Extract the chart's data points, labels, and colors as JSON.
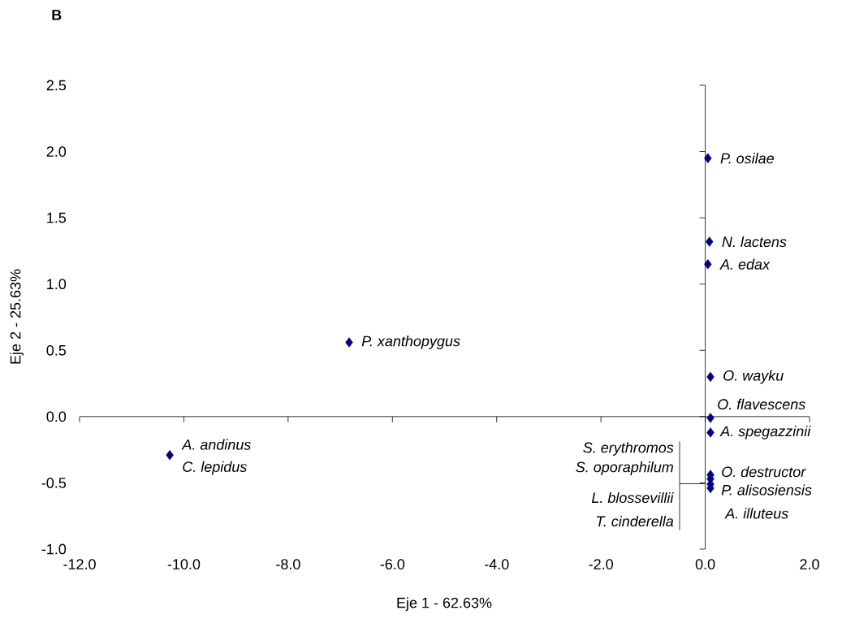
{
  "chart_data": {
    "type": "scatter",
    "title": "B",
    "xlabel": "Eje 1 - 62.63%",
    "ylabel": "Eje 2 - 25.63%",
    "x": [
      0.05,
      0.08,
      0.05,
      -6.83,
      0.1,
      0.1,
      0.1,
      -10.27,
      0.1,
      0.1,
      0.1,
      0.1
    ],
    "values": [
      1.95,
      1.32,
      1.15,
      0.56,
      0.3,
      -0.01,
      -0.12,
      -0.29,
      -0.44,
      -0.47,
      -0.51,
      -0.54
    ],
    "color": "#000080",
    "marker": "diamond",
    "xlim": [
      -12,
      2
    ],
    "ylim": [
      -1,
      2.5
    ],
    "xticks": [
      {
        "value": -12,
        "label": "-12.0"
      },
      {
        "value": -10,
        "label": "-10.0"
      },
      {
        "value": -8,
        "label": "-8.0"
      },
      {
        "value": -6,
        "label": "-6.0"
      },
      {
        "value": -4,
        "label": "-4.0"
      },
      {
        "value": -2,
        "label": "-2.0"
      },
      {
        "value": 0,
        "label": "0.0"
      },
      {
        "value": 2,
        "label": "2.0"
      }
    ],
    "yticks": [
      {
        "value": -1,
        "label": "-1.0"
      },
      {
        "value": -0.5,
        "label": "-0.5"
      },
      {
        "value": 0,
        "label": "0.0"
      },
      0.5,
      {
        "value": 1,
        "label": "1.0"
      },
      1.5,
      {
        "value": 2,
        "label": "2.0"
      },
      2.5
    ],
    "annotations": [
      {
        "text": "*P. osilae*",
        "x": 0.05,
        "y": 1.95
      },
      {
        "text": "*N. lactens*",
        "x": 0.08,
        "y": 1.32
      },
      {
        "text": "*A. edax*",
        "x": 0.05,
        "y": 1.15
      },
      {
        "text": "*P. xanthopygus*",
        "x": -6.83,
        "y": 0.56
      },
      {
        "text": "*O. wayku*",
        "x": 0.1,
        "y": 0.3
      },
      {
        "text": "*O. flavescens*",
        "x": 0.1,
        "y": -0.01
      },
      {
        "text": "*A. spegazzinii*",
        "x": 0.1,
        "y": -0.12
      },
      {
        "text": "*A. andinus*",
        "x": -10.27,
        "y": -0.29
      },
      {
        "text": "*C. lepidus*",
        "x": -10.27,
        "y": -0.29
      },
      {
        "text": "*O. destructor*",
        "x": 0.1,
        "y": -0.44
      },
      {
        "text": "*P. alisosiensis*",
        "x": 0.1,
        "y": -0.51
      },
      {
        "text": "*A. illuteus*",
        "x": 0.1,
        "y": -0.54
      },
      "*S. erythromos*",
      {
        "text": "*S. oporaphilum*",
        "x": 0.1,
        "y": -0.47
      },
      "*L. blossevillii*",
      "*T. cinderella*"
    ]
  }
}
